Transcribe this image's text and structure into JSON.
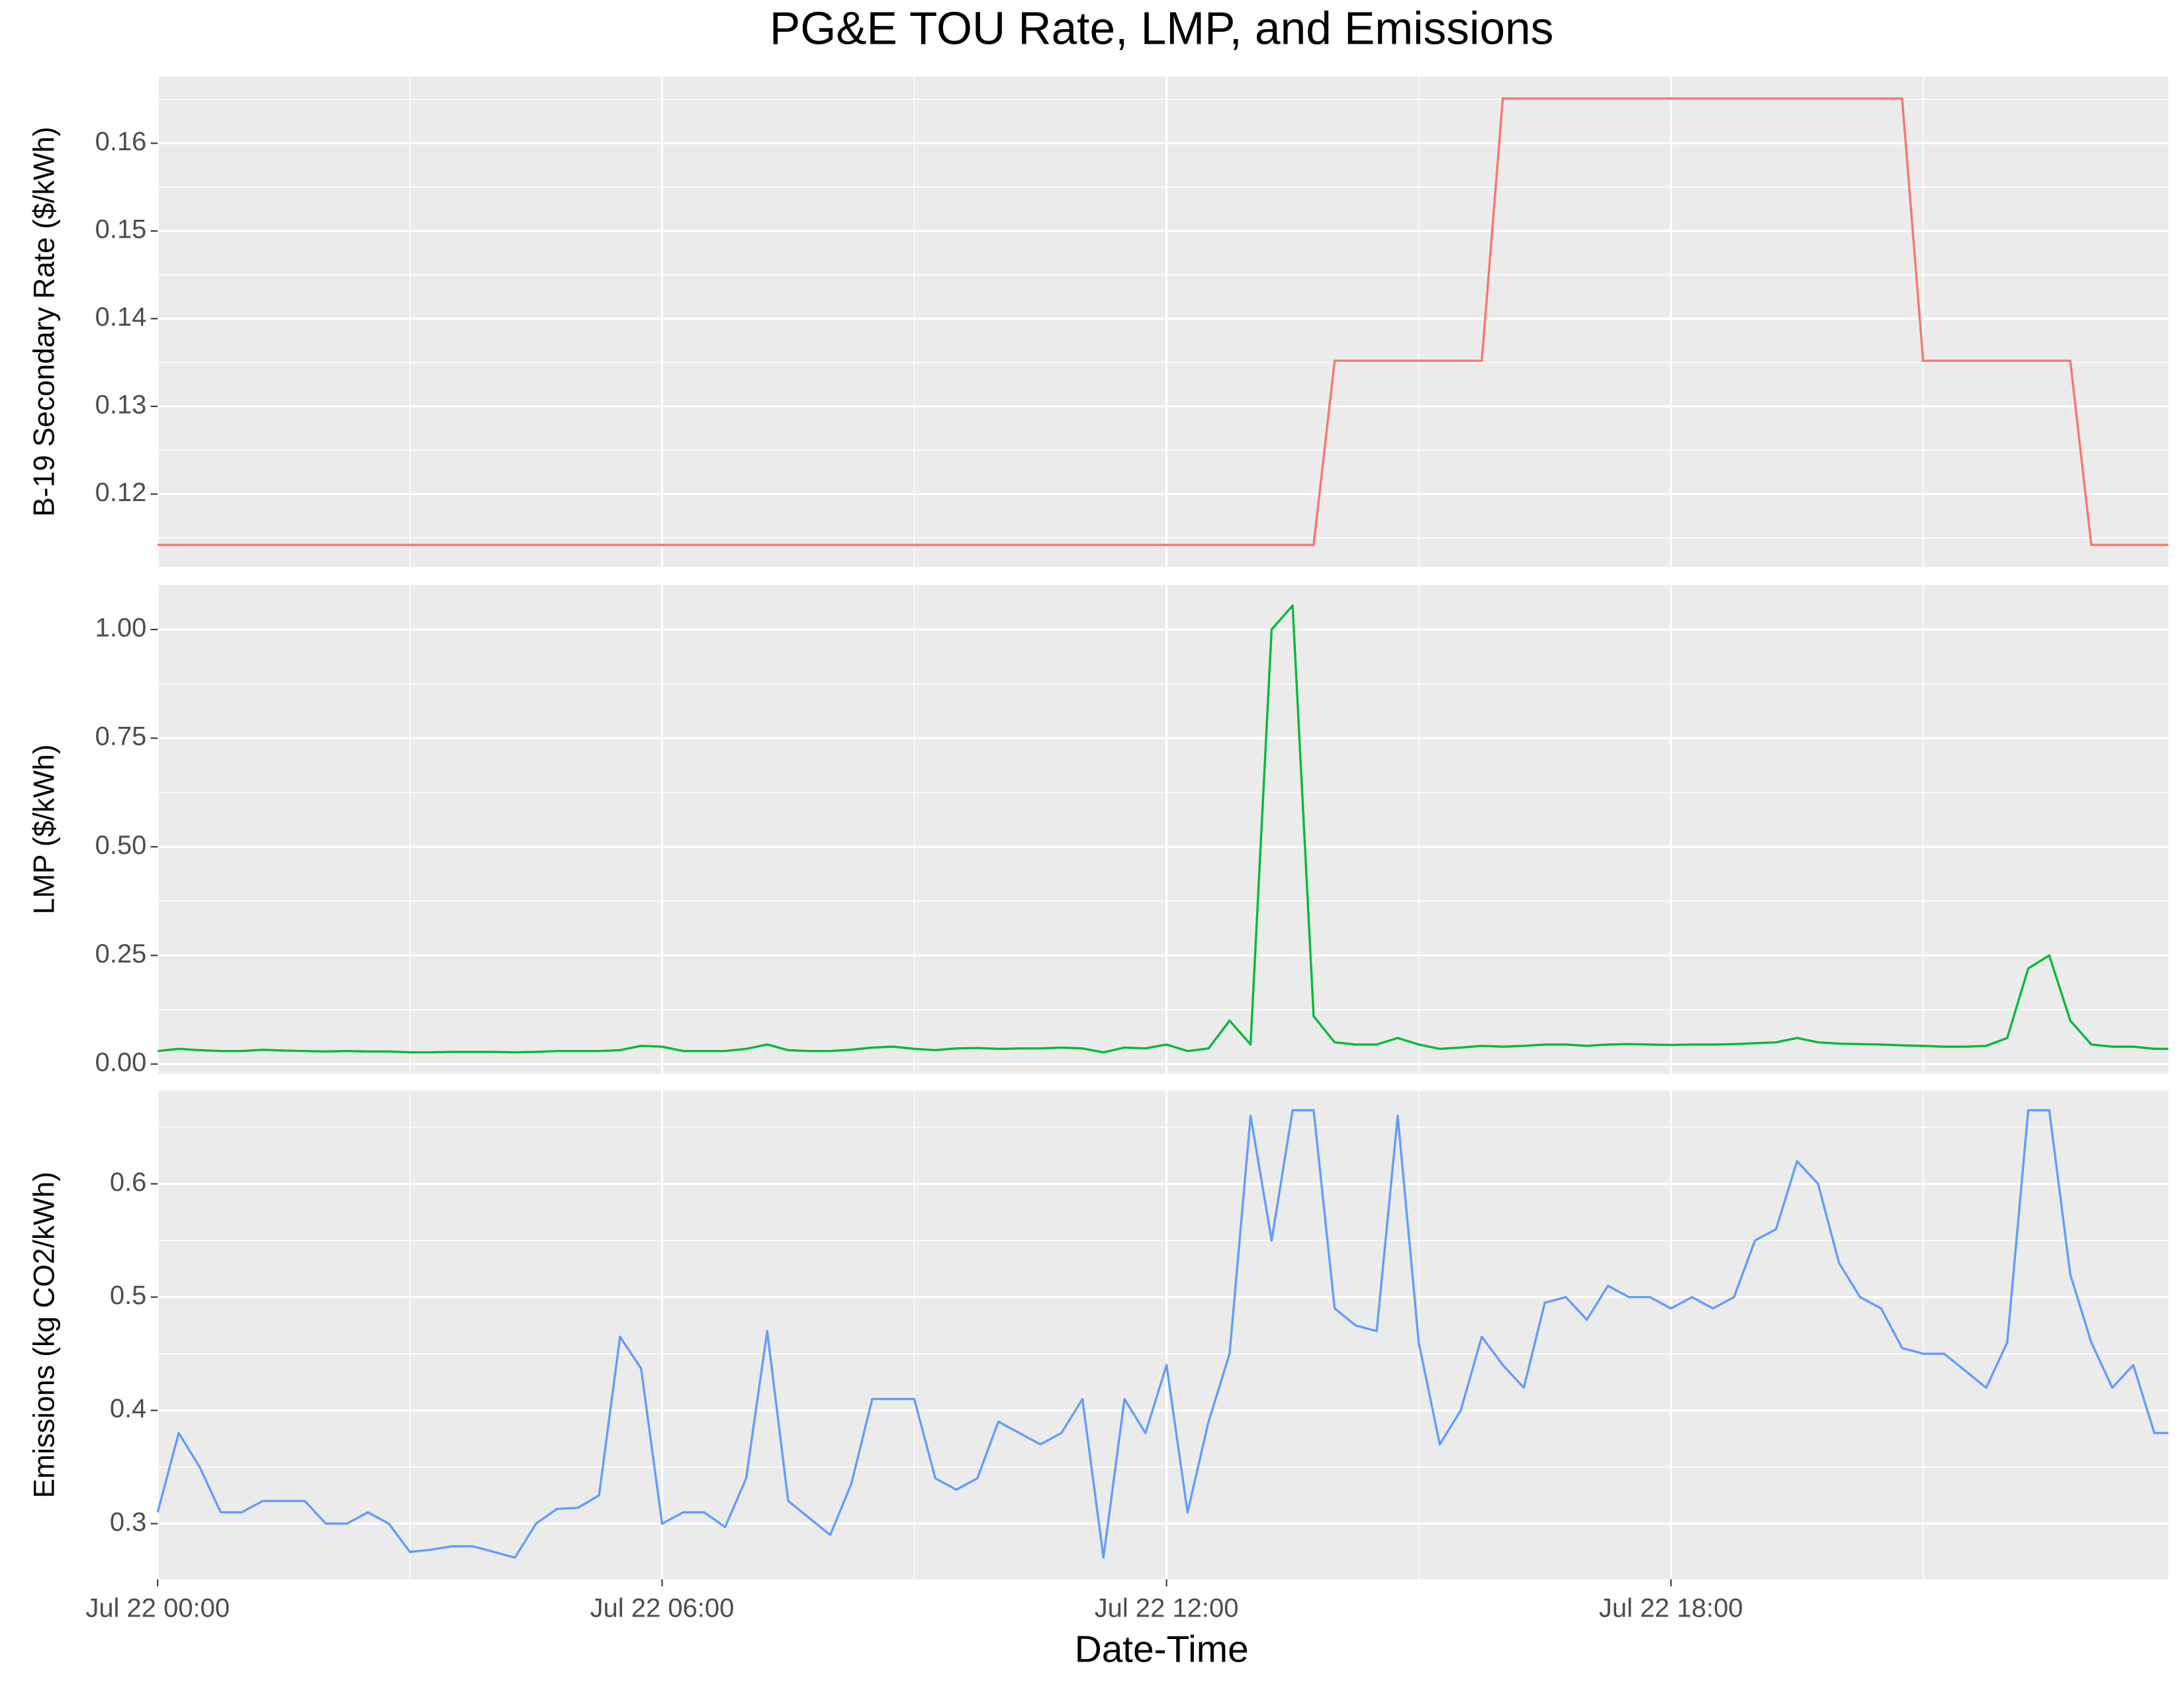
{
  "chart_data": {
    "type": "line",
    "title": "PG&E TOU Rate, LMP, and Emissions",
    "xlabel": "Date-Time",
    "xlim": [
      "Jul 22 00:00",
      "Jul 22 23:55"
    ],
    "xticks": [
      "Jul 22 00:00",
      "Jul 22 06:00",
      "Jul 22 12:00",
      "Jul 22 18:00"
    ],
    "grid": true,
    "x": [
      "Jul 22 00:00",
      "Jul 22 00:15",
      "Jul 22 00:30",
      "Jul 22 00:45",
      "Jul 22 01:00",
      "Jul 22 01:15",
      "Jul 22 01:30",
      "Jul 22 01:45",
      "Jul 22 02:00",
      "Jul 22 02:15",
      "Jul 22 02:30",
      "Jul 22 02:45",
      "Jul 22 03:00",
      "Jul 22 03:15",
      "Jul 22 03:30",
      "Jul 22 03:45",
      "Jul 22 04:00",
      "Jul 22 04:15",
      "Jul 22 04:30",
      "Jul 22 04:45",
      "Jul 22 05:00",
      "Jul 22 05:15",
      "Jul 22 05:30",
      "Jul 22 05:45",
      "Jul 22 06:00",
      "Jul 22 06:15",
      "Jul 22 06:30",
      "Jul 22 06:45",
      "Jul 22 07:00",
      "Jul 22 07:15",
      "Jul 22 07:30",
      "Jul 22 07:45",
      "Jul 22 08:00",
      "Jul 22 08:15",
      "Jul 22 08:30",
      "Jul 22 08:45",
      "Jul 22 09:00",
      "Jul 22 09:15",
      "Jul 22 09:30",
      "Jul 22 09:45",
      "Jul 22 10:00",
      "Jul 22 10:15",
      "Jul 22 10:30",
      "Jul 22 10:45",
      "Jul 22 11:00",
      "Jul 22 11:15",
      "Jul 22 11:30",
      "Jul 22 11:45",
      "Jul 22 12:00",
      "Jul 22 12:15",
      "Jul 22 12:30",
      "Jul 22 12:45",
      "Jul 22 13:00",
      "Jul 22 13:15",
      "Jul 22 13:30",
      "Jul 22 13:45",
      "Jul 22 14:00",
      "Jul 22 14:15",
      "Jul 22 14:30",
      "Jul 22 14:45",
      "Jul 22 15:00",
      "Jul 22 15:15",
      "Jul 22 15:30",
      "Jul 22 15:45",
      "Jul 22 16:00",
      "Jul 22 16:15",
      "Jul 22 16:30",
      "Jul 22 16:45",
      "Jul 22 17:00",
      "Jul 22 17:15",
      "Jul 22 17:30",
      "Jul 22 17:45",
      "Jul 22 18:00",
      "Jul 22 18:15",
      "Jul 22 18:30",
      "Jul 22 18:45",
      "Jul 22 19:00",
      "Jul 22 19:15",
      "Jul 22 19:30",
      "Jul 22 19:45",
      "Jul 22 20:00",
      "Jul 22 20:15",
      "Jul 22 20:30",
      "Jul 22 20:45",
      "Jul 22 21:00",
      "Jul 22 21:15",
      "Jul 22 21:30",
      "Jul 22 21:45",
      "Jul 22 22:00",
      "Jul 22 22:15",
      "Jul 22 22:30",
      "Jul 22 22:45",
      "Jul 22 23:00",
      "Jul 22 23:15",
      "Jul 22 23:30",
      "Jul 22 23:45",
      "Jul 22 23:55"
    ],
    "panels": [
      {
        "ylabel": "B-19 Secondary Rate ($/kWh)",
        "color": "#f8766d",
        "ylim": [
          0.1117,
          0.1676
        ],
        "yticks": [
          0.12,
          0.13,
          0.14,
          0.15,
          0.16
        ],
        "values": [
          0.1142,
          0.1142,
          0.1142,
          0.1142,
          0.1142,
          0.1142,
          0.1142,
          0.1142,
          0.1142,
          0.1142,
          0.1142,
          0.1142,
          0.1142,
          0.1142,
          0.1142,
          0.1142,
          0.1142,
          0.1142,
          0.1142,
          0.1142,
          0.1142,
          0.1142,
          0.1142,
          0.1142,
          0.1142,
          0.1142,
          0.1142,
          0.1142,
          0.1142,
          0.1142,
          0.1142,
          0.1142,
          0.1142,
          0.1142,
          0.1142,
          0.1142,
          0.1142,
          0.1142,
          0.1142,
          0.1142,
          0.1142,
          0.1142,
          0.1142,
          0.1142,
          0.1142,
          0.1142,
          0.1142,
          0.1142,
          0.1142,
          0.1142,
          0.1142,
          0.1142,
          0.1142,
          0.1142,
          0.1142,
          0.1142,
          0.1352,
          0.1352,
          0.1352,
          0.1352,
          0.1352,
          0.1352,
          0.1352,
          0.1352,
          0.1651,
          0.1651,
          0.1651,
          0.1651,
          0.1651,
          0.1651,
          0.1651,
          0.1651,
          0.1651,
          0.1651,
          0.1651,
          0.1651,
          0.1651,
          0.1651,
          0.1651,
          0.1651,
          0.1651,
          0.1651,
          0.1651,
          0.1651,
          0.1352,
          0.1352,
          0.1352,
          0.1352,
          0.1352,
          0.1352,
          0.1352,
          0.1352,
          0.1142,
          0.1142,
          0.1142,
          0.1142,
          0.1142
        ]
      },
      {
        "ylabel": "LMP ($/kWh)",
        "color": "#00ba38",
        "ylim": [
          -0.0224,
          1.1026
        ],
        "yticks": [
          {
            "value": 0,
            "label": "0.00"
          },
          {
            "value": 0.25,
            "label": "0.25"
          },
          {
            "value": 0.5,
            "label": "0.50"
          },
          {
            "value": 0.75,
            "label": "0.75"
          },
          {
            "value": 1,
            "label": "1.00"
          }
        ],
        "values": [
          0.03,
          0.035,
          0.032,
          0.03,
          0.03,
          0.033,
          0.031,
          0.03,
          0.029,
          0.03,
          0.029,
          0.029,
          0.027,
          0.027,
          0.028,
          0.028,
          0.028,
          0.027,
          0.028,
          0.03,
          0.03,
          0.03,
          0.032,
          0.042,
          0.04,
          0.03,
          0.03,
          0.03,
          0.035,
          0.045,
          0.032,
          0.03,
          0.03,
          0.033,
          0.038,
          0.04,
          0.035,
          0.032,
          0.036,
          0.037,
          0.035,
          0.036,
          0.036,
          0.038,
          0.036,
          0.027,
          0.038,
          0.036,
          0.045,
          0.03,
          0.036,
          0.1,
          0.045,
          1.0,
          1.055,
          0.11,
          0.05,
          0.045,
          0.045,
          0.06,
          0.045,
          0.035,
          0.038,
          0.042,
          0.04,
          0.042,
          0.045,
          0.045,
          0.042,
          0.045,
          0.046,
          0.045,
          0.044,
          0.045,
          0.045,
          0.046,
          0.048,
          0.05,
          0.06,
          0.05,
          0.047,
          0.046,
          0.045,
          0.043,
          0.042,
          0.04,
          0.04,
          0.042,
          0.06,
          0.22,
          0.25,
          0.1,
          0.045,
          0.04,
          0.04,
          0.035,
          0.035
        ]
      },
      {
        "ylabel": "Emissions (kg CO2/kWh)",
        "color": "#619cff",
        "ylim": [
          0.2508,
          0.6824
        ],
        "yticks": [
          0.3,
          0.4,
          0.5,
          0.6
        ],
        "values": [
          0.31,
          0.38,
          0.35,
          0.31,
          0.31,
          0.32,
          0.32,
          0.32,
          0.3,
          0.3,
          0.31,
          0.3,
          0.275,
          0.277,
          0.28,
          0.28,
          0.275,
          0.27,
          0.3,
          0.313,
          0.314,
          0.325,
          0.465,
          0.437,
          0.3,
          0.31,
          0.31,
          0.297,
          0.34,
          0.47,
          0.32,
          0.305,
          0.29,
          0.335,
          0.41,
          0.41,
          0.41,
          0.34,
          0.33,
          0.34,
          0.39,
          0.38,
          0.37,
          0.38,
          0.41,
          0.27,
          0.41,
          0.38,
          0.44,
          0.31,
          0.39,
          0.45,
          0.66,
          0.55,
          0.665,
          0.665,
          0.49,
          0.475,
          0.47,
          0.66,
          0.46,
          0.37,
          0.4,
          0.465,
          0.44,
          0.42,
          0.495,
          0.5,
          0.48,
          0.51,
          0.5,
          0.5,
          0.49,
          0.5,
          0.49,
          0.5,
          0.55,
          0.56,
          0.62,
          0.6,
          0.53,
          0.5,
          0.49,
          0.455,
          0.45,
          0.45,
          0.435,
          0.42,
          0.46,
          0.665,
          0.665,
          0.52,
          0.46,
          0.42,
          0.44,
          0.38,
          0.38
        ]
      }
    ]
  }
}
